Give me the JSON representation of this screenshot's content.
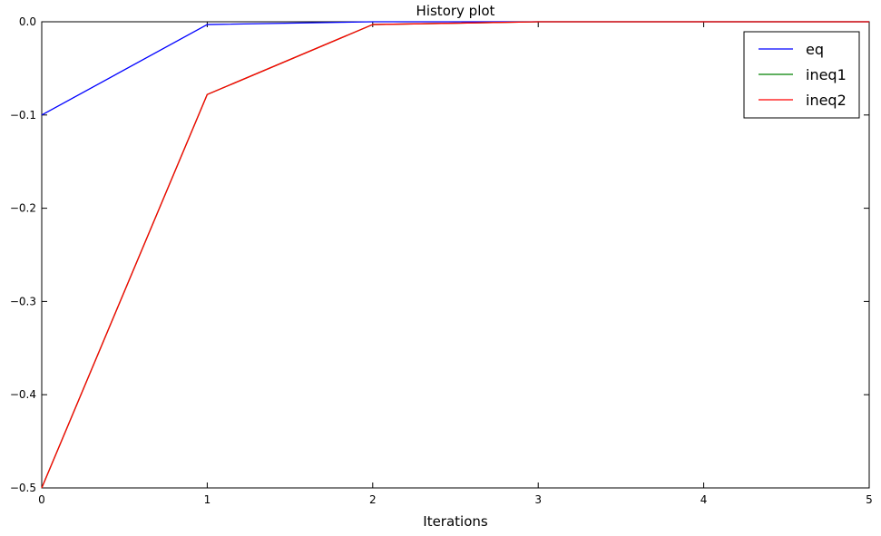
{
  "chart_data": {
    "type": "line",
    "title": "History plot",
    "xlabel": "Iterations",
    "ylabel": "",
    "xlim": [
      0,
      5
    ],
    "ylim": [
      -0.5,
      0.0
    ],
    "xticks": [
      0,
      1,
      2,
      3,
      4,
      5
    ],
    "xtick_labels": [
      "0",
      "1",
      "2",
      "3",
      "4",
      "5"
    ],
    "yticks": [
      0.0,
      -0.1,
      -0.2,
      -0.3,
      -0.4,
      -0.5
    ],
    "ytick_labels": [
      "0.0",
      "−0.1",
      "−0.2",
      "−0.3",
      "−0.4",
      "−0.5"
    ],
    "grid": false,
    "legend_position": "top-right",
    "series": [
      {
        "name": "eq",
        "color": "#0000ff",
        "x": [
          0,
          1,
          2,
          3,
          4,
          5
        ],
        "values": [
          -0.1,
          -0.003,
          0.0,
          0.0,
          0.0,
          0.0
        ]
      },
      {
        "name": "ineq1",
        "color": "#008000",
        "x": [
          0,
          1,
          2,
          3,
          4,
          5
        ],
        "values": [
          -0.5,
          -0.078,
          -0.003,
          0.0,
          0.0,
          0.0
        ]
      },
      {
        "name": "ineq2",
        "color": "#ff0000",
        "x": [
          0,
          1,
          2,
          3,
          4,
          5
        ],
        "values": [
          -0.5,
          -0.078,
          -0.003,
          0.0,
          0.0,
          0.0
        ]
      }
    ]
  }
}
